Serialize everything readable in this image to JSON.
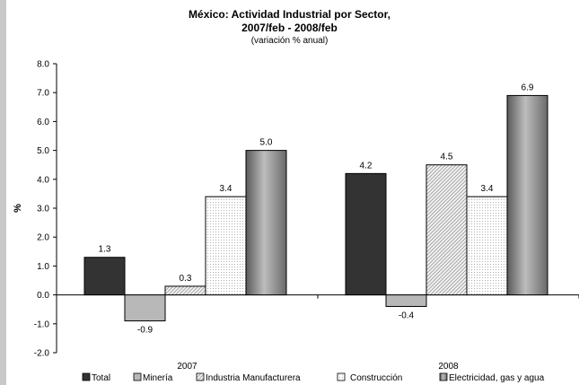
{
  "chart_data": {
    "type": "bar",
    "title_line1": "México: Actividad Industrial por Sector,",
    "title_line2": "2007/feb - 2008/feb",
    "subtitle": "(variación % anual)",
    "ylabel": "%",
    "xlabel": "",
    "ylim": [
      -2.0,
      8.0
    ],
    "ytick_step": 1.0,
    "yticks": [
      "-2.0",
      "-1.0",
      "0.0",
      "1.0",
      "2.0",
      "3.0",
      "4.0",
      "5.0",
      "6.0",
      "7.0",
      "8.0"
    ],
    "categories": [
      "2007",
      "2008"
    ],
    "grid": false,
    "legend_position": "bottom",
    "series": [
      {
        "name": "Total",
        "values": [
          1.3,
          4.2
        ],
        "labels": [
          "1.3",
          "4.2"
        ],
        "fill": "dark-solid",
        "color": "#333333"
      },
      {
        "name": "Minería",
        "values": [
          -0.9,
          -0.4
        ],
        "labels": [
          "-0.9",
          "-0.4"
        ],
        "fill": "light-gray",
        "color": "#b8b8b8"
      },
      {
        "name": "Industria Manufacturera",
        "values": [
          0.3,
          4.5
        ],
        "labels": [
          "0.3",
          "4.5"
        ],
        "fill": "diagonal-hatch",
        "color": "#d0d0d0"
      },
      {
        "name": "Construcción",
        "values": [
          3.4,
          3.4
        ],
        "labels": [
          "3.4",
          "3.4"
        ],
        "fill": "dotted",
        "color": "#ececec"
      },
      {
        "name": "Electricidad, gas y agua",
        "values": [
          5.0,
          6.9
        ],
        "labels": [
          "5.0",
          "6.9"
        ],
        "fill": "gray-gradient",
        "color": "#808080"
      }
    ]
  }
}
